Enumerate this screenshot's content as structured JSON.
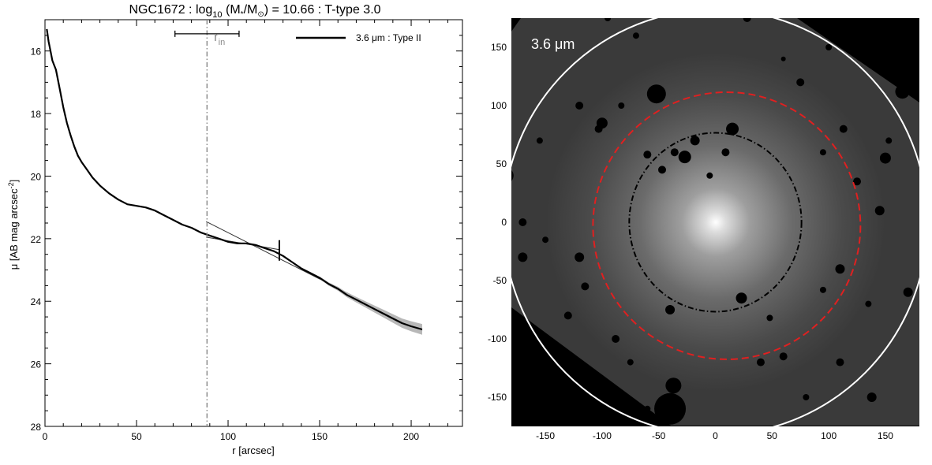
{
  "title": {
    "object": "NGC1672",
    "sep1": " : log",
    "sub10": "10",
    "open_paren": " (M",
    "star": "*",
    "slash_m": "/M",
    "sun": "⊙",
    "close": ") = 10.66 : T-type 3.0"
  },
  "profile": {
    "xlabel": "r [arcsec]",
    "ylabel_main": "μ [AB mag arcsec",
    "ylabel_sup": "-2",
    "ylabel_end": "]",
    "legend_label": "3.6 μm : Type II",
    "rin_label": "r",
    "rin_sub": "in",
    "xticks": [
      "0",
      "50",
      "100",
      "150",
      "200"
    ],
    "yticks": [
      "16",
      "18",
      "20",
      "22",
      "24",
      "26",
      "28"
    ]
  },
  "image_panel": {
    "band_label": "3.6 μm",
    "xticks": [
      "-150",
      "-100",
      "-50",
      "0",
      "50",
      "100",
      "150"
    ],
    "yticks": [
      "150",
      "100",
      "50",
      "0",
      "-50",
      "-100",
      "-150"
    ]
  },
  "colors": {
    "profile_line": "#000000",
    "fit_line": "#333333",
    "rin_line": "#8c8c8c",
    "outer_ellipse": "#ffffff",
    "break_ellipse": "#e02020",
    "inner_ellipse": "#000000"
  },
  "chart_data": [
    {
      "type": "line",
      "title": "NGC1672 : log10 (M*/M⊙) = 10.66 : T-type 3.0",
      "xlabel": "r [arcsec]",
      "ylabel": "μ [AB mag arcsec-2]",
      "xlim": [
        0,
        228
      ],
      "ylim": [
        28,
        15
      ],
      "y_inverted": true,
      "legend": "top-right",
      "series": [
        {
          "name": "3.6 μm : Type II",
          "x": [
            1,
            2,
            3,
            4,
            5,
            6,
            8,
            10,
            12,
            14,
            16,
            18,
            20,
            23,
            26,
            30,
            35,
            40,
            45,
            50,
            55,
            60,
            65,
            70,
            75,
            80,
            85,
            90,
            95,
            100,
            105,
            110,
            115,
            120,
            125,
            130,
            135,
            140,
            145,
            150,
            155,
            160,
            165,
            170,
            175,
            180,
            185,
            190,
            195,
            200,
            206
          ],
          "y": [
            15.3,
            15.7,
            16.0,
            16.3,
            16.45,
            16.6,
            17.2,
            17.8,
            18.3,
            18.7,
            19.05,
            19.35,
            19.55,
            19.8,
            20.05,
            20.3,
            20.55,
            20.75,
            20.9,
            20.95,
            21.0,
            21.1,
            21.25,
            21.4,
            21.55,
            21.65,
            21.8,
            21.9,
            22.0,
            22.1,
            22.15,
            22.15,
            22.2,
            22.3,
            22.4,
            22.55,
            22.75,
            22.95,
            23.1,
            23.25,
            23.45,
            23.6,
            23.8,
            23.95,
            24.1,
            24.25,
            24.4,
            24.55,
            24.7,
            24.8,
            24.9
          ]
        },
        {
          "name": "",
          "kind": "inner-fit",
          "x": [
            88,
            128
          ],
          "y": [
            21.95,
            22.35
          ]
        },
        {
          "name": "",
          "kind": "outer-fit",
          "x": [
            88,
            206
          ],
          "y": [
            21.45,
            24.95
          ]
        }
      ],
      "annotations": [
        {
          "kind": "vline-dashdot",
          "label": "r_in",
          "x": 88.5
        },
        {
          "kind": "errorbar",
          "x": 88.5,
          "xmin": 71,
          "xmax": 106,
          "y": 15.45
        },
        {
          "kind": "break-marker",
          "x": 128,
          "y": 22.35
        }
      ]
    },
    {
      "type": "image",
      "band": "3.6 μm",
      "xlim": [
        -180,
        180
      ],
      "ylim": [
        -175,
        175
      ],
      "ellipses": [
        {
          "kind": "outer",
          "color": "#ffffff",
          "cx": 0,
          "cy": 0,
          "rx": 187,
          "ry": 188
        },
        {
          "kind": "break",
          "color": "#e02020",
          "cx": 10,
          "cy": -3,
          "rx": 118,
          "ry": 118
        },
        {
          "kind": "inner",
          "color": "#000000",
          "cx": 0,
          "cy": 0,
          "rx": 76,
          "ry": 79
        }
      ]
    }
  ]
}
